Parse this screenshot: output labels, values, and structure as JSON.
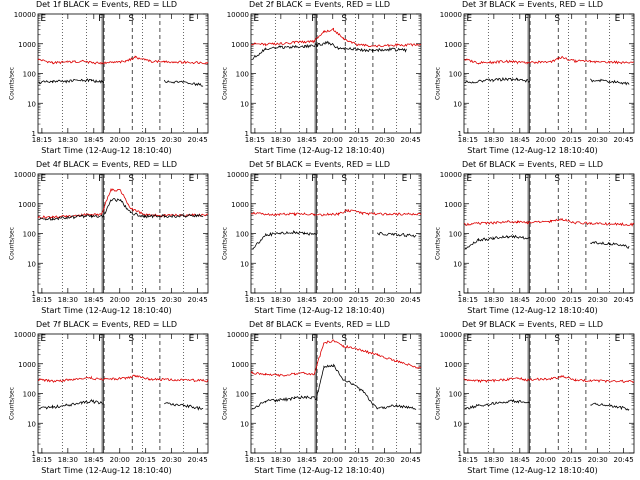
{
  "chart_data": {
    "type": "line",
    "xlabel": "Start Time (12-Aug-12 18:10:40)",
    "ylabel": "Counts/sec",
    "x_ticks": [
      "18:15",
      "18:30",
      "18:45",
      "20:00",
      "20:15",
      "20:30",
      "20:45"
    ],
    "y_ticks": [
      "1",
      "10",
      "100",
      "1000",
      "10000"
    ],
    "ylim": [
      1,
      10000
    ],
    "y_scale": "log",
    "x_minutes_range": [
      0,
      35
    ],
    "vline_markers": [
      "E",
      "F",
      "S",
      "E"
    ],
    "series_colors": {
      "events": "#000000",
      "lld": "#dd0000"
    },
    "panels": [
      {
        "title": "Det 1f BLACK = Events, RED = LLD",
        "black": [
          [
            0.2,
            50
          ],
          [
            3,
            52
          ],
          [
            6,
            55
          ],
          [
            9,
            60
          ],
          [
            11,
            58
          ],
          [
            13.5,
            52
          ],
          [
            19,
            0
          ],
          [
            25,
            0
          ],
          [
            26,
            55
          ],
          [
            30,
            50
          ],
          [
            34,
            40
          ]
        ],
        "red": [
          [
            0,
            300
          ],
          [
            3,
            230
          ],
          [
            6,
            240
          ],
          [
            9,
            260
          ],
          [
            11,
            230
          ],
          [
            13,
            220
          ],
          [
            18,
            250
          ],
          [
            20,
            350
          ],
          [
            23,
            260
          ],
          [
            26,
            250
          ],
          [
            30,
            240
          ],
          [
            35,
            230
          ]
        ]
      },
      {
        "title": "Det 2f BLACK = Events, RED = LLD",
        "black": [
          [
            0.2,
            300
          ],
          [
            3,
            700
          ],
          [
            6,
            750
          ],
          [
            9,
            800
          ],
          [
            11,
            800
          ],
          [
            13.5,
            900
          ],
          [
            16,
            1100
          ],
          [
            18,
            700
          ],
          [
            21,
            650
          ],
          [
            25,
            600
          ],
          [
            28,
            650
          ],
          [
            32,
            600
          ]
        ],
        "red": [
          [
            0,
            1000
          ],
          [
            3,
            950
          ],
          [
            6,
            1000
          ],
          [
            9,
            1100
          ],
          [
            11,
            1150
          ],
          [
            13,
            1200
          ],
          [
            15,
            2500
          ],
          [
            17,
            3000
          ],
          [
            19,
            1500
          ],
          [
            22,
            900
          ],
          [
            26,
            850
          ],
          [
            30,
            900
          ],
          [
            35,
            950
          ]
        ]
      },
      {
        "title": "Det 3f BLACK = Events, RED = LLD",
        "black": [
          [
            0.2,
            50
          ],
          [
            3,
            55
          ],
          [
            6,
            60
          ],
          [
            9,
            65
          ],
          [
            11,
            62
          ],
          [
            13.5,
            55
          ],
          [
            19,
            0
          ],
          [
            25,
            0
          ],
          [
            26,
            60
          ],
          [
            30,
            55
          ],
          [
            34,
            45
          ]
        ],
        "red": [
          [
            0,
            300
          ],
          [
            3,
            230
          ],
          [
            6,
            240
          ],
          [
            9,
            260
          ],
          [
            11,
            240
          ],
          [
            13,
            230
          ],
          [
            18,
            250
          ],
          [
            20,
            350
          ],
          [
            23,
            260
          ],
          [
            26,
            250
          ],
          [
            30,
            240
          ],
          [
            35,
            230
          ]
        ]
      },
      {
        "title": "Det 4f BLACK = Events, RED = LLD",
        "black": [
          [
            0.2,
            300
          ],
          [
            3,
            320
          ],
          [
            6,
            340
          ],
          [
            9,
            380
          ],
          [
            11,
            390
          ],
          [
            13.5,
            380
          ],
          [
            15,
            1400
          ],
          [
            17,
            1300
          ],
          [
            19,
            500
          ],
          [
            22,
            380
          ],
          [
            26,
            380
          ],
          [
            30,
            390
          ],
          [
            34,
            400
          ]
        ],
        "red": [
          [
            0,
            350
          ],
          [
            3,
            360
          ],
          [
            6,
            370
          ],
          [
            9,
            420
          ],
          [
            11,
            440
          ],
          [
            13,
            420
          ],
          [
            15,
            3000
          ],
          [
            17,
            2800
          ],
          [
            19,
            700
          ],
          [
            22,
            420
          ],
          [
            26,
            400
          ],
          [
            30,
            410
          ],
          [
            35,
            420
          ]
        ]
      },
      {
        "title": "Det 5f BLACK = Events, RED = LLD",
        "black": [
          [
            0.2,
            30
          ],
          [
            3,
            90
          ],
          [
            6,
            100
          ],
          [
            9,
            110
          ],
          [
            11,
            100
          ],
          [
            13.5,
            90
          ],
          [
            19,
            0
          ],
          [
            25,
            0
          ],
          [
            26,
            100
          ],
          [
            30,
            95
          ],
          [
            34,
            80
          ]
        ],
        "red": [
          [
            0,
            500
          ],
          [
            3,
            430
          ],
          [
            6,
            440
          ],
          [
            9,
            450
          ],
          [
            11,
            440
          ],
          [
            13,
            420
          ],
          [
            18,
            450
          ],
          [
            20,
            600
          ],
          [
            23,
            470
          ],
          [
            26,
            450
          ],
          [
            30,
            440
          ],
          [
            35,
            450
          ]
        ]
      },
      {
        "title": "Det 6f BLACK = Events, RED = LLD",
        "black": [
          [
            0.2,
            30
          ],
          [
            3,
            60
          ],
          [
            6,
            70
          ],
          [
            9,
            80
          ],
          [
            11,
            75
          ],
          [
            13.5,
            70
          ],
          [
            19,
            0
          ],
          [
            25,
            0
          ],
          [
            26,
            50
          ],
          [
            30,
            45
          ],
          [
            34,
            35
          ]
        ],
        "red": [
          [
            0,
            200
          ],
          [
            3,
            220
          ],
          [
            6,
            230
          ],
          [
            9,
            250
          ],
          [
            11,
            240
          ],
          [
            13,
            230
          ],
          [
            18,
            260
          ],
          [
            20,
            300
          ],
          [
            23,
            230
          ],
          [
            26,
            220
          ],
          [
            30,
            210
          ],
          [
            35,
            200
          ]
        ]
      },
      {
        "title": "Det 7f BLACK = Events, RED = LLD",
        "black": [
          [
            0.2,
            30
          ],
          [
            3,
            35
          ],
          [
            6,
            40
          ],
          [
            9,
            50
          ],
          [
            11,
            55
          ],
          [
            13.5,
            45
          ],
          [
            19,
            0
          ],
          [
            25,
            0
          ],
          [
            26,
            45
          ],
          [
            30,
            40
          ],
          [
            34,
            30
          ]
        ],
        "red": [
          [
            0,
            300
          ],
          [
            3,
            260
          ],
          [
            6,
            280
          ],
          [
            9,
            320
          ],
          [
            11,
            330
          ],
          [
            13,
            300
          ],
          [
            18,
            320
          ],
          [
            20,
            400
          ],
          [
            23,
            300
          ],
          [
            26,
            290
          ],
          [
            30,
            280
          ],
          [
            35,
            270
          ]
        ]
      },
      {
        "title": "Det 8f BLACK = Events, RED = LLD",
        "black": [
          [
            0.2,
            30
          ],
          [
            3,
            55
          ],
          [
            6,
            60
          ],
          [
            9,
            70
          ],
          [
            11,
            75
          ],
          [
            13.5,
            70
          ],
          [
            15,
            800
          ],
          [
            17,
            900
          ],
          [
            19,
            300
          ],
          [
            21,
            200
          ],
          [
            23,
            120
          ],
          [
            26,
            30
          ],
          [
            30,
            40
          ],
          [
            34,
            30
          ]
        ],
        "red": [
          [
            0,
            500
          ],
          [
            3,
            450
          ],
          [
            6,
            400
          ],
          [
            9,
            450
          ],
          [
            11,
            480
          ],
          [
            13,
            450
          ],
          [
            15,
            5000
          ],
          [
            17,
            6000
          ],
          [
            19,
            4000
          ],
          [
            22,
            3000
          ],
          [
            26,
            2000
          ],
          [
            30,
            1200
          ],
          [
            35,
            700
          ]
        ]
      },
      {
        "title": "Det 9f BLACK = Events, RED = LLD",
        "black": [
          [
            0.2,
            30
          ],
          [
            3,
            40
          ],
          [
            6,
            45
          ],
          [
            9,
            55
          ],
          [
            11,
            55
          ],
          [
            13.5,
            50
          ],
          [
            19,
            0
          ],
          [
            25,
            0
          ],
          [
            26,
            45
          ],
          [
            30,
            40
          ],
          [
            34,
            30
          ]
        ],
        "red": [
          [
            0,
            300
          ],
          [
            3,
            260
          ],
          [
            6,
            270
          ],
          [
            9,
            300
          ],
          [
            11,
            320
          ],
          [
            13,
            290
          ],
          [
            18,
            310
          ],
          [
            20,
            380
          ],
          [
            23,
            280
          ],
          [
            26,
            270
          ],
          [
            30,
            260
          ],
          [
            35,
            250
          ]
        ]
      }
    ]
  }
}
